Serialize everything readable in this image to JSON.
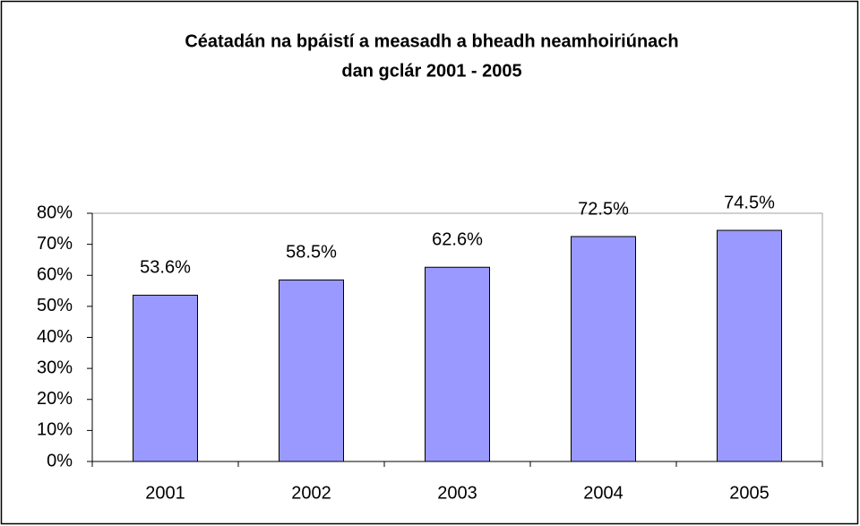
{
  "chart_data": {
    "type": "bar",
    "title": [
      "Céatadán na bpáistí a measadh a bheadh neamhoiriúnach",
      "dan gclár 2001 - 2005"
    ],
    "categories": [
      "2001",
      "2002",
      "2003",
      "2004",
      "2005"
    ],
    "values": [
      53.6,
      58.5,
      62.6,
      72.5,
      74.5
    ],
    "value_labels": [
      "53.6%",
      "58.5%",
      "62.6%",
      "72.5%",
      "74.5%"
    ],
    "color": "#9999ff",
    "ylim": [
      0,
      80
    ],
    "yticks": [
      {
        "value": 0,
        "label": "0%"
      },
      {
        "value": 10,
        "label": "10%"
      },
      {
        "value": 20,
        "label": "20%"
      },
      {
        "value": 30,
        "label": "30%"
      },
      {
        "value": 40,
        "label": "40%"
      },
      {
        "value": 50,
        "label": "50%"
      },
      {
        "value": 60,
        "label": "60%"
      },
      {
        "value": 70,
        "label": "70%"
      },
      {
        "value": 80,
        "label": "80%"
      }
    ],
    "grid": false
  }
}
